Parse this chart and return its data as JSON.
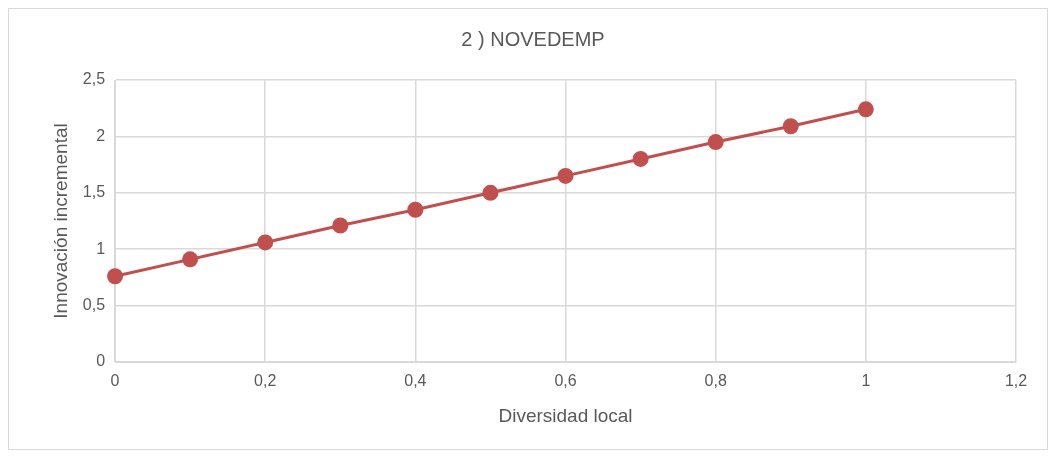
{
  "chart_data": {
    "type": "line",
    "title": "2 ) NOVEDEMP",
    "xlabel": "Diversidad local",
    "ylabel": "Innovación incremental",
    "x": [
      0,
      0.1,
      0.2,
      0.3,
      0.4,
      0.5,
      0.6,
      0.7,
      0.8,
      0.9,
      1
    ],
    "series": [
      {
        "color": "#c0504d",
        "values": [
          0.76,
          0.91,
          1.06,
          1.21,
          1.35,
          1.5,
          1.65,
          1.8,
          1.95,
          2.09,
          2.24
        ]
      }
    ],
    "xlim": [
      0,
      1.2
    ],
    "xticks": [
      0,
      {
        "value": 0.2,
        "label": "0,2"
      },
      {
        "value": 0.4,
        "label": "0,4"
      },
      {
        "value": 0.6,
        "label": "0,6"
      },
      {
        "value": 0.8,
        "label": "0,8"
      },
      1,
      {
        "value": 1.2,
        "label": "1,2"
      }
    ],
    "ylim": [
      0,
      2.5
    ],
    "yticks": [
      0,
      {
        "value": 0.5,
        "label": "0,5"
      },
      1,
      {
        "value": 1.5,
        "label": "1,5"
      },
      2,
      {
        "value": 2.5,
        "label": "2,5"
      }
    ],
    "grid": true,
    "legend": false,
    "marker": "circle",
    "line_style": "solid"
  }
}
